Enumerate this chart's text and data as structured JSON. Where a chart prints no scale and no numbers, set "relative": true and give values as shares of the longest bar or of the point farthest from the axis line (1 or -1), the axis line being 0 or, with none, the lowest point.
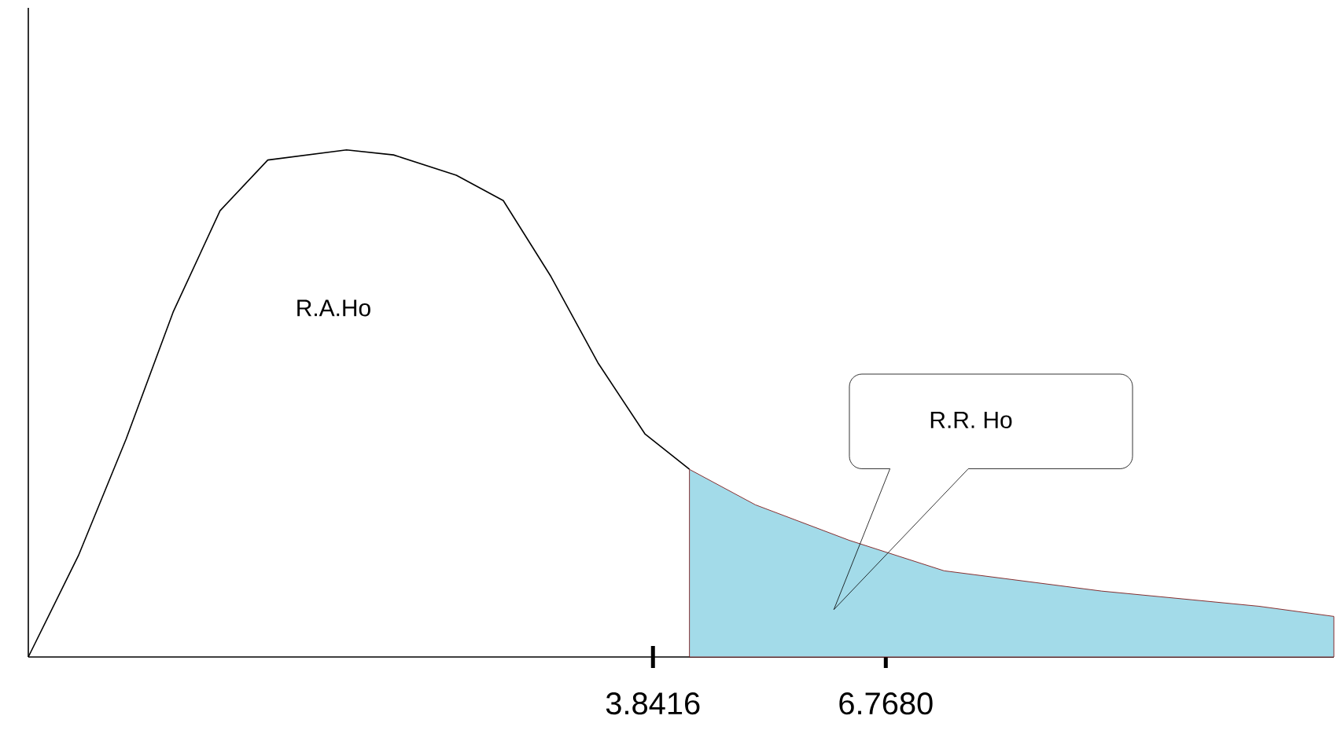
{
  "chart_data": {
    "type": "line",
    "relative": true,
    "xlim": [
      -4.01,
      12.4
    ],
    "xticks": [
      {
        "value": 3.8416,
        "label": "3.8416"
      },
      {
        "value": 6.768,
        "label": "6.7680"
      }
    ],
    "series": [
      {
        "color": "#000000",
        "x": [
          -4.01,
          -3.38,
          -2.78,
          -2.19,
          -1.6,
          -1.0,
          -0.01,
          0.58,
          1.37,
          1.96,
          2.56,
          3.15,
          3.74,
          4.3
        ],
        "values": [
          0,
          0.2,
          0.43,
          0.68,
          0.88,
          0.98,
          1,
          0.99,
          0.95,
          0.9,
          0.75,
          0.58,
          0.44,
          0.37
        ]
      },
      {
        "type": "area",
        "color": "#a3dbe9",
        "x": [
          4.3,
          5.13,
          6.31,
          7.5,
          9.48,
          11.46,
          12.4
        ],
        "values": [
          0.37,
          0.3,
          0.23,
          0.17,
          0.13,
          0.1,
          0.08
        ]
      }
    ],
    "annotations": [
      "R.A.Ho",
      "R.R. Ho"
    ]
  }
}
